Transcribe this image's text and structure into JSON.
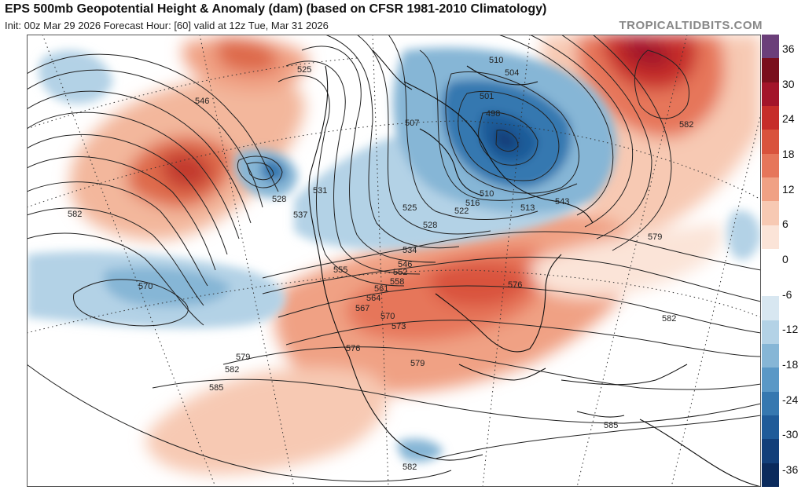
{
  "header": {
    "title": "EPS 500mb Geopotential Height & Anomaly (dam) (based on CFSR 1981-2010 Climatology)",
    "subtitle": "Init: 00z Mar 29 2026   Forecast Hour: [60]   valid at 12z Tue, Mar 31 2026",
    "credit": "TROPICALTIDBITS.COM"
  },
  "colorbar": {
    "ticks": [
      "36",
      "30",
      "24",
      "18",
      "12",
      "6",
      "0",
      "-6",
      "-12",
      "-18",
      "-24",
      "-30",
      "-36"
    ],
    "colors": [
      "#6b3f7a",
      "#7a0f1c",
      "#a3152a",
      "#c62d2a",
      "#d9533c",
      "#e6765a",
      "#f0a184",
      "#f7c9b3",
      "#fbe4d8",
      "#ffffff",
      "#ffffff",
      "#d8e7f1",
      "#b3d2e6",
      "#86b6d6",
      "#5a98c6",
      "#3678b0",
      "#1f5b99",
      "#123f7a",
      "#0a2a5c"
    ]
  },
  "map": {
    "contour_labels": [
      {
        "text": "525"
      },
      {
        "text": "546"
      },
      {
        "text": "528"
      },
      {
        "text": "531"
      },
      {
        "text": "537"
      },
      {
        "text": "510"
      },
      {
        "text": "504"
      },
      {
        "text": "501"
      },
      {
        "text": "498"
      },
      {
        "text": "507"
      },
      {
        "text": "510"
      },
      {
        "text": "516"
      },
      {
        "text": "522"
      },
      {
        "text": "525"
      },
      {
        "text": "528"
      },
      {
        "text": "513"
      },
      {
        "text": "543"
      },
      {
        "text": "534"
      },
      {
        "text": "546"
      },
      {
        "text": "552"
      },
      {
        "text": "555"
      },
      {
        "text": "558"
      },
      {
        "text": "561"
      },
      {
        "text": "564"
      },
      {
        "text": "567"
      },
      {
        "text": "570"
      },
      {
        "text": "573"
      },
      {
        "text": "576"
      },
      {
        "text": "576"
      },
      {
        "text": "579"
      },
      {
        "text": "579"
      },
      {
        "text": "579"
      },
      {
        "text": "582"
      },
      {
        "text": "582"
      },
      {
        "text": "582"
      },
      {
        "text": "582"
      },
      {
        "text": "582"
      },
      {
        "text": "585"
      },
      {
        "text": "585"
      },
      {
        "text": "570"
      }
    ]
  }
}
